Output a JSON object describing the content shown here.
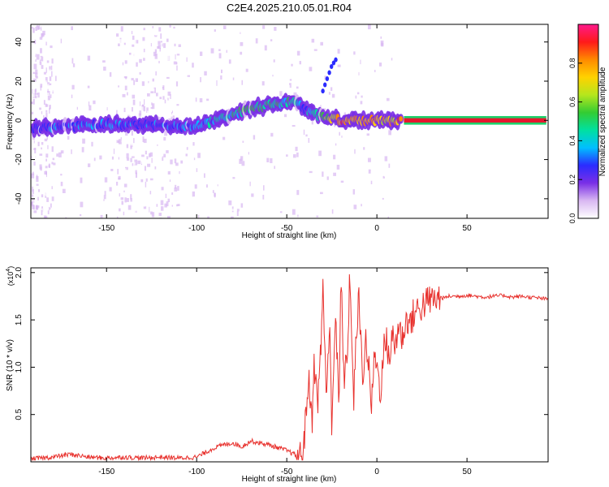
{
  "title": "C2E4.2025.210.05.01.R04",
  "colors": {
    "snr_line": "#e8322e",
    "axis": "#000000",
    "trace_core": "#e8162e",
    "trace_halo": "#1fd16b"
  },
  "colorbar": {
    "label": "Normalized spectral amplitude",
    "ticks": [
      "0.0",
      "0.2",
      "0.4",
      "0.6",
      "0.8"
    ],
    "tick_values": [
      0.0,
      0.2,
      0.4,
      0.6,
      0.8
    ],
    "range": [
      0,
      1
    ],
    "colormap": [
      "#ffffff",
      "#d9b8f2",
      "#7a2fe6",
      "#2b2bff",
      "#00bfff",
      "#00e0a0",
      "#33cc33",
      "#b5e61d",
      "#ffd200",
      "#ff8a00",
      "#ff1a1a",
      "#ff1a8c"
    ]
  },
  "chart_data": [
    {
      "type": "heatmap",
      "xlabel": "Height of straight line (km)",
      "ylabel": "Frequency (Hz)",
      "xlim": [
        -192,
        95
      ],
      "ylim": [
        -50,
        49
      ],
      "xticks": [
        -150,
        -100,
        -50,
        0,
        50
      ],
      "xtick_labels": [
        "-150",
        "-100",
        "-50",
        "0",
        "50"
      ],
      "yticks": [
        -40,
        -20,
        0,
        20,
        40
      ],
      "ytick_labels": [
        "-40",
        "-20",
        "0",
        "20",
        "40"
      ],
      "ridge": {
        "x": [
          -190,
          -170,
          -150,
          -130,
          -110,
          -100,
          -90,
          -80,
          -70,
          -60,
          -50,
          -45,
          -40,
          -35,
          -30,
          -20,
          -10,
          0,
          10,
          15,
          30,
          60,
          94
        ],
        "freq": [
          -4,
          -3,
          -2,
          -2,
          -3,
          -3,
          0,
          3,
          6,
          8,
          9,
          10,
          6,
          3,
          2,
          0,
          0,
          0,
          -1,
          0,
          0,
          0,
          0
        ],
        "amplitude": [
          0.3,
          0.32,
          0.33,
          0.3,
          0.32,
          0.38,
          0.45,
          0.5,
          0.55,
          0.55,
          0.5,
          0.45,
          0.35,
          0.5,
          0.6,
          0.85,
          0.85,
          0.82,
          0.75,
          0.95,
          0.95,
          0.95,
          0.95
        ]
      },
      "branch": {
        "x": [
          -30,
          -25,
          -22
        ],
        "freq": [
          15,
          28,
          32
        ]
      }
    },
    {
      "type": "line",
      "xlabel": "Height of straight line (km)",
      "ylabel": "SNR (10 * v/v)",
      "y_multiplier": "(x10",
      "y_multiplier_exp": "4",
      "xlim": [
        -192,
        95
      ],
      "ylim": [
        0,
        2.05
      ],
      "xticks": [
        -150,
        -100,
        -50,
        0,
        50
      ],
      "xtick_labels": [
        "-150",
        "-100",
        "-50",
        "0",
        "50"
      ],
      "yticks": [
        0.5,
        1.0,
        1.5,
        2.0
      ],
      "ytick_labels": [
        "0.5",
        "1.0",
        "1.5",
        "2.0"
      ],
      "series": [
        {
          "x": [
            -192,
            -180,
            -170,
            -160,
            -150,
            -140,
            -130,
            -120,
            -110,
            -100,
            -95,
            -90,
            -85,
            -80,
            -75,
            -70,
            -65,
            -60,
            -55,
            -50,
            -46,
            -43,
            -41,
            -40,
            -38,
            -36,
            -35,
            -33,
            -31,
            -30,
            -28,
            -26,
            -25,
            -23,
            -21,
            -20,
            -18,
            -16,
            -15,
            -13,
            -11,
            -10,
            -8,
            -6,
            -5,
            -3,
            -1,
            0,
            2,
            4,
            5,
            7,
            9,
            10,
            12,
            14,
            15,
            17,
            19,
            20,
            22,
            24,
            25,
            27,
            29,
            30,
            32,
            34,
            35,
            37,
            40,
            45,
            50,
            55,
            60,
            65,
            70,
            75,
            80,
            85,
            90,
            94
          ],
          "values": [
            0.03,
            0.05,
            0.08,
            0.05,
            0.04,
            0.05,
            0.04,
            0.05,
            0.04,
            0.05,
            0.1,
            0.15,
            0.18,
            0.2,
            0.16,
            0.22,
            0.2,
            0.18,
            0.15,
            0.12,
            0.08,
            0.05,
            0.1,
            0.3,
            0.9,
            0.4,
            1.1,
            0.6,
            1.2,
            1.9,
            0.7,
            1.4,
            0.4,
            1.6,
            0.5,
            1.95,
            0.8,
            1.3,
            2.05,
            0.6,
            1.5,
            1.7,
            0.9,
            1.3,
            1.1,
            0.6,
            1.2,
            1.0,
            0.75,
            1.2,
            1.3,
            1.1,
            1.35,
            1.2,
            1.45,
            1.3,
            1.4,
            1.52,
            1.45,
            1.55,
            1.6,
            1.62,
            1.65,
            1.68,
            1.7,
            1.72,
            1.71,
            1.73,
            1.74,
            1.73,
            1.75,
            1.75,
            1.76,
            1.75,
            1.74,
            1.75,
            1.76,
            1.74,
            1.75,
            1.74,
            1.73,
            1.72
          ]
        }
      ]
    }
  ]
}
